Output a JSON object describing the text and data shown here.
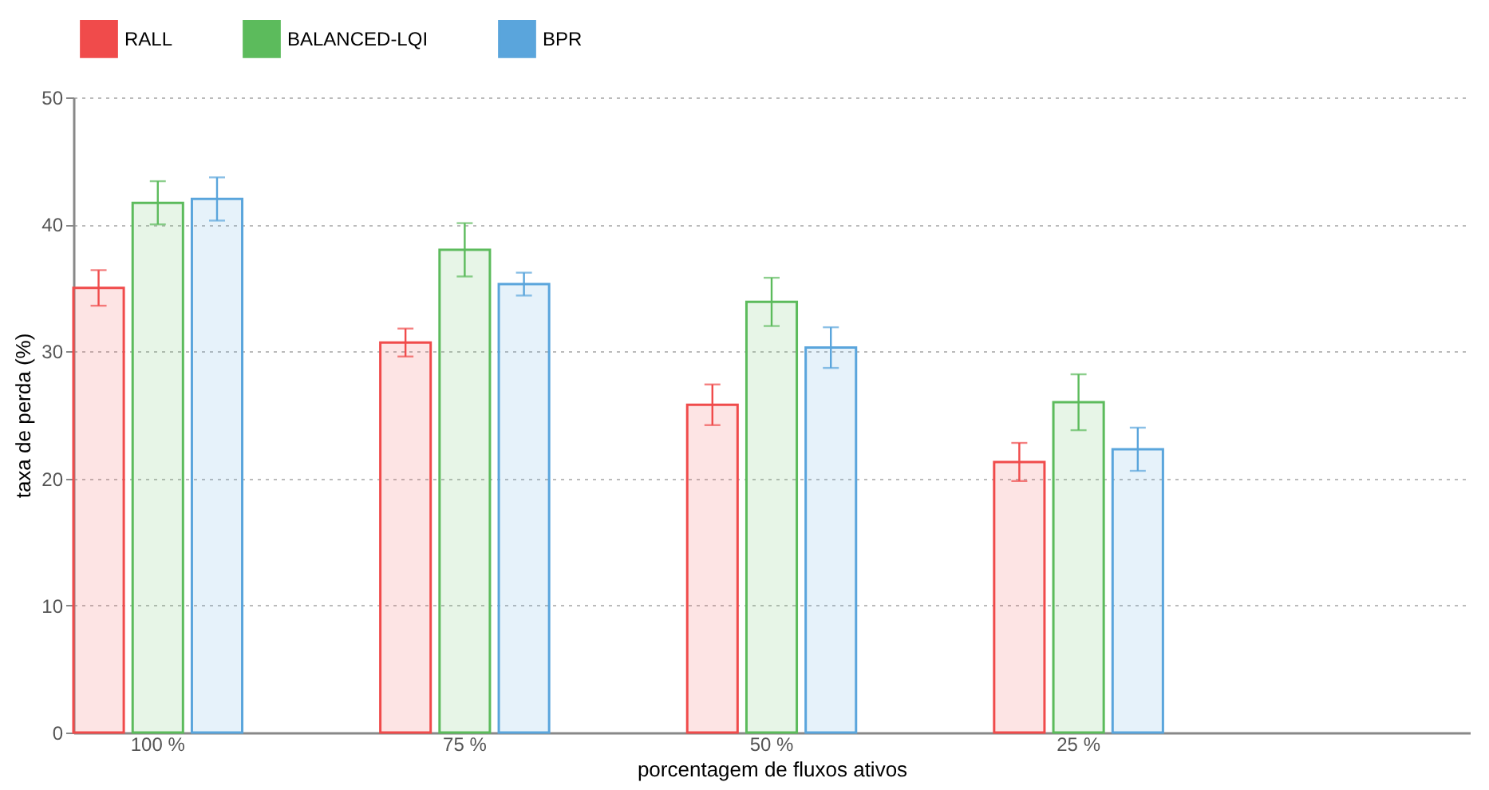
{
  "chart_data": {
    "type": "bar",
    "xlabel": "porcentagem de fluxos ativos",
    "ylabel": "taxa de perda (%)",
    "categories": [
      "100 %",
      "75 %",
      "50 %",
      "25 %",
      null
    ],
    "series": [
      {
        "name": "RALL",
        "color": "#f04b4b",
        "values": [
          35.0,
          30.7,
          25.8,
          21.3,
          null
        ],
        "errors": [
          1.4,
          1.1,
          1.6,
          1.5,
          null
        ]
      },
      {
        "name": "BALANCED-LQI",
        "color": "#5cbb5c",
        "values": [
          41.7,
          38.0,
          33.9,
          26.0,
          null
        ],
        "errors": [
          1.7,
          2.1,
          1.9,
          2.2,
          null
        ]
      },
      {
        "name": "BPR",
        "color": "#5aa5dc",
        "values": [
          42.0,
          35.3,
          30.3,
          22.3,
          null
        ],
        "errors": [
          1.7,
          0.9,
          1.6,
          1.7,
          null
        ]
      }
    ],
    "ylim": [
      0,
      50
    ],
    "yticks": [
      0,
      10,
      20,
      30,
      40,
      50
    ],
    "grid": "y",
    "legend": "top"
  }
}
